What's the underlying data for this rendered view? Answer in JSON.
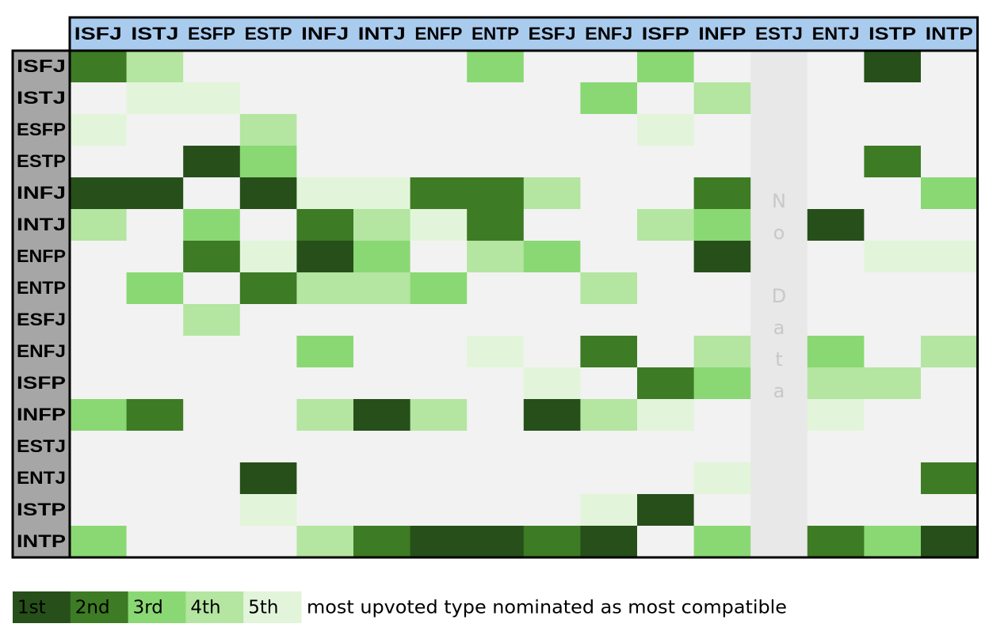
{
  "chart_data": {
    "type": "heatmap",
    "columns": [
      "ISFJ",
      "ISTJ",
      "ESFP",
      "ESTP",
      "INFJ",
      "INTJ",
      "ENFP",
      "ENTP",
      "ESFJ",
      "ENFJ",
      "ISFP",
      "INFP",
      "ESTJ",
      "ENTJ",
      "ISTP",
      "INTP"
    ],
    "rows": [
      "ISFJ",
      "ISTJ",
      "ESFP",
      "ESTP",
      "INFJ",
      "INTJ",
      "ENFP",
      "ENTP",
      "ESFJ",
      "ENFJ",
      "ISFP",
      "INFP",
      "ESTJ",
      "ENTJ",
      "ISTP",
      "INTP"
    ],
    "rank_matrix": [
      [
        2,
        4,
        0,
        0,
        0,
        0,
        0,
        3,
        0,
        0,
        3,
        0,
        0,
        0,
        1,
        0
      ],
      [
        0,
        5,
        5,
        0,
        0,
        0,
        0,
        0,
        0,
        3,
        0,
        4,
        0,
        0,
        0,
        0
      ],
      [
        5,
        0,
        0,
        4,
        0,
        0,
        0,
        0,
        0,
        0,
        5,
        0,
        0,
        0,
        0,
        0
      ],
      [
        0,
        0,
        1,
        3,
        0,
        0,
        0,
        0,
        0,
        0,
        0,
        0,
        0,
        0,
        2,
        0
      ],
      [
        1,
        1,
        0,
        1,
        5,
        5,
        2,
        2,
        4,
        0,
        0,
        2,
        0,
        0,
        0,
        3
      ],
      [
        4,
        0,
        3,
        0,
        2,
        4,
        5,
        2,
        0,
        0,
        4,
        3,
        0,
        1,
        0,
        0
      ],
      [
        0,
        0,
        2,
        5,
        1,
        3,
        0,
        4,
        3,
        0,
        0,
        1,
        0,
        0,
        5,
        5
      ],
      [
        0,
        3,
        0,
        2,
        4,
        4,
        3,
        0,
        0,
        4,
        0,
        0,
        0,
        0,
        0,
        0
      ],
      [
        0,
        0,
        4,
        0,
        0,
        0,
        0,
        0,
        0,
        0,
        0,
        0,
        0,
        0,
        0,
        0
      ],
      [
        0,
        0,
        0,
        0,
        3,
        0,
        0,
        5,
        0,
        2,
        0,
        4,
        0,
        3,
        0,
        4
      ],
      [
        0,
        0,
        0,
        0,
        0,
        0,
        0,
        0,
        5,
        0,
        2,
        3,
        0,
        4,
        4,
        0
      ],
      [
        3,
        2,
        0,
        0,
        4,
        1,
        4,
        0,
        1,
        4,
        5,
        0,
        0,
        5,
        0,
        0
      ],
      [
        0,
        0,
        0,
        0,
        0,
        0,
        0,
        0,
        0,
        0,
        0,
        0,
        0,
        0,
        0,
        0
      ],
      [
        0,
        0,
        0,
        1,
        0,
        0,
        0,
        0,
        0,
        0,
        0,
        5,
        0,
        0,
        0,
        2
      ],
      [
        0,
        0,
        0,
        5,
        0,
        0,
        0,
        0,
        0,
        5,
        1,
        0,
        0,
        0,
        0,
        0
      ],
      [
        3,
        0,
        0,
        0,
        4,
        2,
        1,
        1,
        2,
        1,
        0,
        3,
        0,
        2,
        3,
        1
      ]
    ],
    "no_data_column": "ESTJ",
    "no_data_label": [
      "N",
      "o",
      "",
      "D",
      "a",
      "t",
      "a"
    ],
    "rank_colors": {
      "0": "#f2f2f2",
      "1": "#264f1a",
      "2": "#3d7b24",
      "3": "#8ad874",
      "4": "#b4e5a1",
      "5": "#e2f5da"
    },
    "no_data_color": "#e8e8e8",
    "header_bg": "#a9cbee",
    "row_header_bg": "#a6a6a6",
    "legend": {
      "items": [
        {
          "label": "1st",
          "rank": 1
        },
        {
          "label": "2nd",
          "rank": 2
        },
        {
          "label": "3rd",
          "rank": 3
        },
        {
          "label": "4th",
          "rank": 4
        },
        {
          "label": "5th",
          "rank": 5
        }
      ],
      "caption": "most upvoted type nominated as most compatible"
    }
  }
}
